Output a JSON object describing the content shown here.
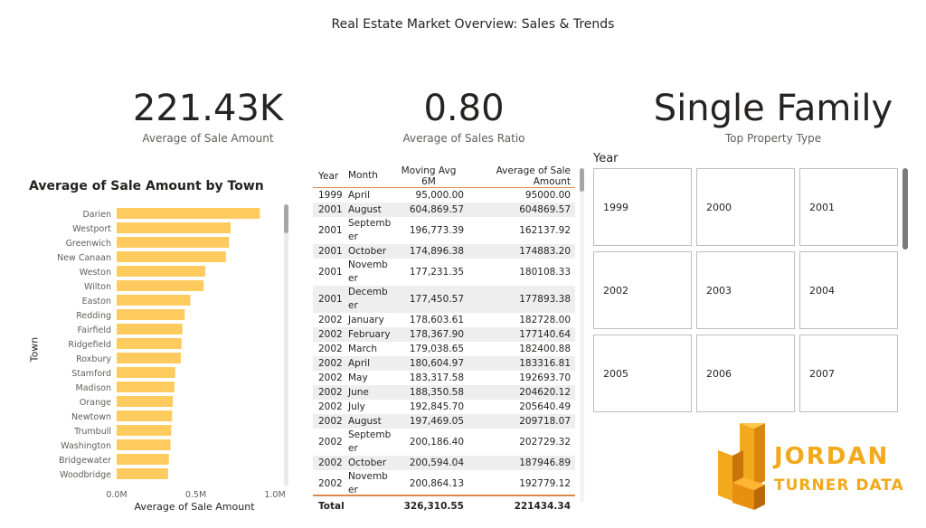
{
  "report": {
    "title": "Real Estate Market Overview: Sales & Trends"
  },
  "kpis": {
    "avg_sale": {
      "value": "221.43K",
      "label": "Average of Sale Amount"
    },
    "sales_ratio": {
      "value": "0.80",
      "label": "Average of Sales Ratio"
    },
    "top_type": {
      "value": "Single Family",
      "label": "Top Property Type"
    }
  },
  "chart_data": {
    "type": "bar",
    "orientation": "horizontal",
    "title": "Average of Sale Amount by Town",
    "xlabel": "Average of Sale Amount",
    "ylabel": "Town",
    "xlim": [
      0,
      1000000
    ],
    "xticks": [
      "0.0M",
      "0.5M",
      "1.0M"
    ],
    "categories": [
      "Darien",
      "Westport",
      "Greenwich",
      "New Canaan",
      "Weston",
      "Wilton",
      "Easton",
      "Redding",
      "Fairfield",
      "Ridgefield",
      "Roxbury",
      "Stamford",
      "Madison",
      "Orange",
      "Newtown",
      "Trumbull",
      "Washington",
      "Bridgewater",
      "Woodbridge"
    ],
    "values": [
      905000,
      720000,
      710000,
      690000,
      560000,
      550000,
      465000,
      430000,
      415000,
      410000,
      405000,
      370000,
      365000,
      355000,
      350000,
      345000,
      340000,
      330000,
      325000
    ],
    "bar_color": "#FFCA5E",
    "grid": false
  },
  "table": {
    "headers": {
      "year": "Year",
      "month": "Month",
      "mavg": "Moving Avg 6M",
      "avg": "Average of Sale Amount"
    },
    "rows": [
      {
        "year": "1999",
        "month": "April",
        "mavg": "95,000.00",
        "avg": "95000.00"
      },
      {
        "year": "2001",
        "month": "August",
        "mavg": "604,869.57",
        "avg": "604869.57"
      },
      {
        "year": "2001",
        "month": "Septemb er",
        "mavg": "196,773.39",
        "avg": "162137.92"
      },
      {
        "year": "2001",
        "month": "October",
        "mavg": "174,896.38",
        "avg": "174883.20"
      },
      {
        "year": "2001",
        "month": "Novemb er",
        "mavg": "177,231.35",
        "avg": "180108.33"
      },
      {
        "year": "2001",
        "month": "Decemb er",
        "mavg": "177,450.57",
        "avg": "177893.38"
      },
      {
        "year": "2002",
        "month": "January",
        "mavg": "178,603.61",
        "avg": "182728.00"
      },
      {
        "year": "2002",
        "month": "February",
        "mavg": "178,367.90",
        "avg": "177140.64"
      },
      {
        "year": "2002",
        "month": "March",
        "mavg": "179,038.65",
        "avg": "182400.88"
      },
      {
        "year": "2002",
        "month": "April",
        "mavg": "180,604.97",
        "avg": "183316.81"
      },
      {
        "year": "2002",
        "month": "May",
        "mavg": "183,317.58",
        "avg": "192693.70"
      },
      {
        "year": "2002",
        "month": "June",
        "mavg": "188,350.58",
        "avg": "204620.12"
      },
      {
        "year": "2002",
        "month": "July",
        "mavg": "192,845.70",
        "avg": "205640.49"
      },
      {
        "year": "2002",
        "month": "August",
        "mavg": "197,469.05",
        "avg": "209718.07"
      },
      {
        "year": "2002",
        "month": "Septemb er",
        "mavg": "200,186.40",
        "avg": "202729.32"
      },
      {
        "year": "2002",
        "month": "October",
        "mavg": "200,594.04",
        "avg": "187946.89"
      },
      {
        "year": "2002",
        "month": "Novemb er",
        "mavg": "200,864.13",
        "avg": "192779.12"
      }
    ],
    "total": {
      "label": "Total",
      "mavg": "326,310.55",
      "avg": "221434.34"
    }
  },
  "slicer": {
    "title": "Year",
    "years": [
      "1999",
      "2000",
      "2001",
      "2002",
      "2003",
      "2004",
      "2005",
      "2006",
      "2007"
    ]
  },
  "logo": {
    "line1": "JORDAN",
    "line2": "TURNER DATA",
    "color": "#F2A91B"
  }
}
